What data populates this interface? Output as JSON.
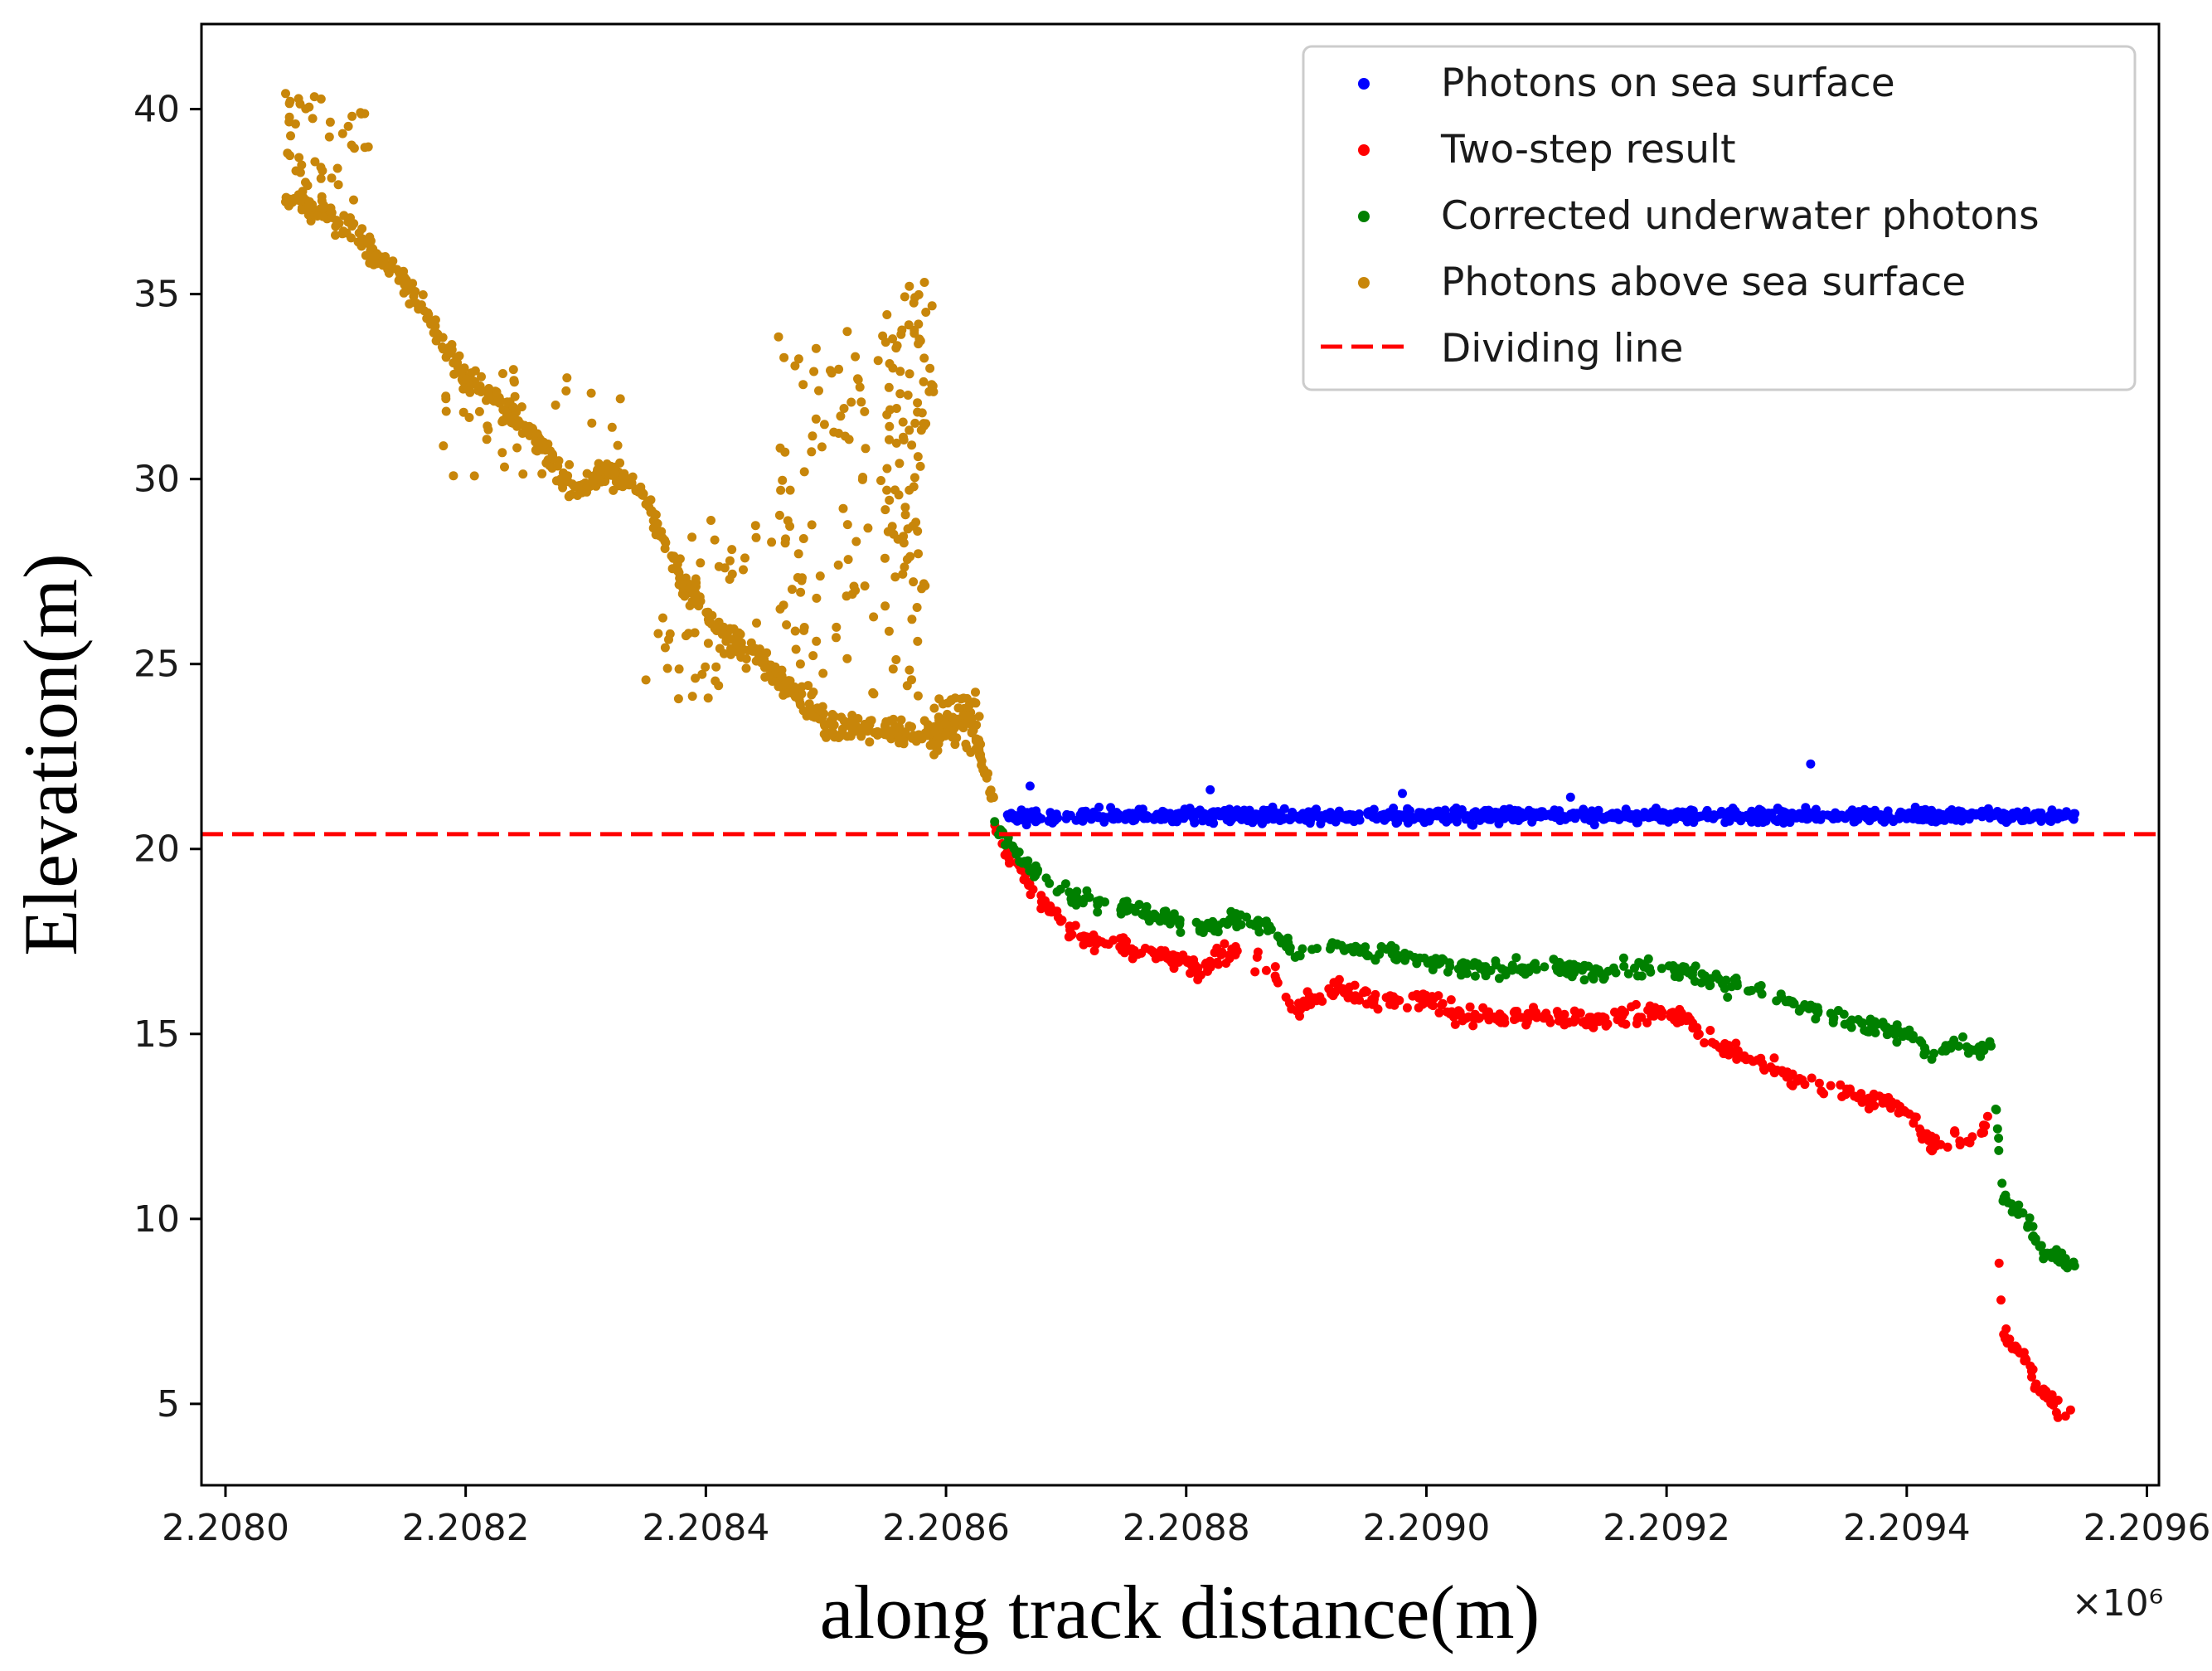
{
  "chart_data": {
    "type": "scatter",
    "title": "",
    "xlabel": "along track distance(m)",
    "ylabel": "Elevation(m)",
    "x_multiplier_label": "×10⁶",
    "xlim": [
      2.20798,
      2.20961
    ],
    "ylim": [
      2.8,
      42.3
    ],
    "grid": false,
    "legend_position": "top-right",
    "x_ticks": [
      2.208,
      2.2082,
      2.2084,
      2.2086,
      2.2088,
      2.209,
      2.2092,
      2.2094,
      2.2096
    ],
    "x_tick_labels": [
      "2.2080",
      "2.2082",
      "2.2084",
      "2.2086",
      "2.2088",
      "2.2090",
      "2.2092",
      "2.2094",
      "2.2096"
    ],
    "y_ticks": [
      5,
      10,
      15,
      20,
      25,
      30,
      35,
      40
    ],
    "y_tick_labels": [
      "5",
      "10",
      "15",
      "20",
      "25",
      "30",
      "35",
      "40"
    ],
    "dividing_line": {
      "label": "Dividing line",
      "y": 20.4,
      "color": "#ff0000",
      "style": "dashed"
    },
    "series": [
      {
        "name": "Photons on sea surface",
        "color": "#0000ff",
        "x_range": [
          2.20865,
          2.20954
        ],
        "y_center": 20.9,
        "y_spread": 0.35,
        "count": 900,
        "outliers": [
          [
            2.20932,
            22.3
          ],
          [
            2.20882,
            21.6
          ],
          [
            2.20898,
            21.5
          ],
          [
            2.20867,
            21.7
          ],
          [
            2.20912,
            21.4
          ]
        ]
      },
      {
        "name": "Two-step result",
        "color": "#ff0000",
        "profile": [
          [
            2.20864,
            20.6
          ],
          [
            2.20866,
            19.4
          ],
          [
            2.20868,
            18.5
          ],
          [
            2.20871,
            17.6
          ],
          [
            2.20875,
            17.3
          ],
          [
            2.20878,
            17.2
          ],
          [
            2.20881,
            16.7
          ],
          [
            2.20884,
            17.3
          ],
          [
            2.20887,
            16.8
          ],
          [
            2.20889,
            15.6
          ],
          [
            2.20892,
            16.2
          ],
          [
            2.20896,
            15.9
          ],
          [
            2.20899,
            16.0
          ],
          [
            2.20903,
            15.5
          ],
          [
            2.20907,
            15.5
          ],
          [
            2.20911,
            15.4
          ],
          [
            2.20915,
            15.3
          ],
          [
            2.20919,
            15.7
          ],
          [
            2.20922,
            15.3
          ],
          [
            2.20925,
            14.6
          ],
          [
            2.20928,
            14.2
          ],
          [
            2.20931,
            13.8
          ],
          [
            2.20934,
            13.5
          ],
          [
            2.20937,
            13.2
          ],
          [
            2.2094,
            13.0
          ],
          [
            2.20942,
            12.0
          ],
          [
            2.20944,
            12.3
          ],
          [
            2.20946,
            12.1
          ],
          [
            2.20947,
            12.8
          ],
          [
            2.20948,
            7.0
          ],
          [
            2.2095,
            6.2
          ],
          [
            2.20951,
            5.3
          ],
          [
            2.20953,
            4.8
          ],
          [
            2.20954,
            4.6
          ]
        ],
        "spread": 0.45,
        "count": 520
      },
      {
        "name": "Corrected underwater photons",
        "color": "#008000",
        "profile": [
          [
            2.20864,
            20.6
          ],
          [
            2.20866,
            19.8
          ],
          [
            2.20868,
            19.2
          ],
          [
            2.20871,
            18.6
          ],
          [
            2.20875,
            18.4
          ],
          [
            2.20878,
            18.2
          ],
          [
            2.20881,
            17.8
          ],
          [
            2.20884,
            18.1
          ],
          [
            2.20887,
            17.9
          ],
          [
            2.20889,
            17.2
          ],
          [
            2.20892,
            17.4
          ],
          [
            2.20896,
            17.2
          ],
          [
            2.20899,
            17.1
          ],
          [
            2.20903,
            16.8
          ],
          [
            2.20907,
            16.8
          ],
          [
            2.20911,
            16.8
          ],
          [
            2.20915,
            16.7
          ],
          [
            2.20919,
            16.9
          ],
          [
            2.20922,
            16.7
          ],
          [
            2.20925,
            16.3
          ],
          [
            2.20928,
            16.2
          ],
          [
            2.20931,
            15.8
          ],
          [
            2.20934,
            15.5
          ],
          [
            2.20937,
            15.2
          ],
          [
            2.2094,
            15.0
          ],
          [
            2.20942,
            14.4
          ],
          [
            2.20944,
            14.8
          ],
          [
            2.20946,
            14.5
          ],
          [
            2.20947,
            14.8
          ],
          [
            2.20948,
            10.6
          ],
          [
            2.2095,
            10.0
          ],
          [
            2.20951,
            9.2
          ],
          [
            2.20953,
            8.9
          ],
          [
            2.20954,
            8.7
          ]
        ],
        "spread": 0.4,
        "count": 520
      },
      {
        "name": "Photons above sea surface",
        "color": "#c8860a",
        "profile": [
          [
            2.20805,
            37.5
          ],
          [
            2.20808,
            37.3
          ],
          [
            2.20811,
            36.6
          ],
          [
            2.20814,
            35.7
          ],
          [
            2.20817,
            34.3
          ],
          [
            2.2082,
            32.8
          ],
          [
            2.20823,
            32.0
          ],
          [
            2.20826,
            31.0
          ],
          [
            2.20829,
            29.7
          ],
          [
            2.20832,
            30.2
          ],
          [
            2.20835,
            29.5
          ],
          [
            2.20838,
            27.2
          ],
          [
            2.20841,
            26.0
          ],
          [
            2.20844,
            25.3
          ],
          [
            2.20847,
            24.3
          ],
          [
            2.2085,
            23.4
          ],
          [
            2.20853,
            23.3
          ],
          [
            2.20856,
            23.2
          ],
          [
            2.20859,
            23.1
          ],
          [
            2.20862,
            23.6
          ],
          [
            2.20864,
            21.2
          ]
        ],
        "spread": 0.6,
        "count": 700,
        "scatter_above": [
          {
            "x_range": [
              2.20805,
              2.20812
            ],
            "y_range": [
              37.5,
              40.5
            ],
            "count": 45
          },
          {
            "x_range": [
              2.20818,
              2.20833
            ],
            "y_range": [
              30.0,
              33.0
            ],
            "count": 40
          },
          {
            "x_range": [
              2.20835,
              2.20848
            ],
            "y_range": [
              24.0,
              29.0
            ],
            "count": 60
          },
          {
            "x_range": [
              2.20846,
              2.20858
            ],
            "y_range": [
              24.0,
              34.0
            ],
            "count": 110
          },
          {
            "x_range": [
              2.20855,
              2.20859
            ],
            "y_range": [
              27.0,
              35.4
            ],
            "count": 70
          },
          {
            "x_range": [
              2.20859,
              2.20863
            ],
            "y_range": [
              22.5,
              24.3
            ],
            "count": 40
          }
        ]
      }
    ]
  },
  "legend": {
    "entries": [
      {
        "label": "Photons on sea surface",
        "color": "#0000ff",
        "kind": "dot"
      },
      {
        "label": "Two-step result",
        "color": "#ff0000",
        "kind": "dot"
      },
      {
        "label": "Corrected underwater photons",
        "color": "#008000",
        "kind": "dot"
      },
      {
        "label": "Photons above sea surface",
        "color": "#c8860a",
        "kind": "dot"
      },
      {
        "label": "Dividing line",
        "color": "#ff0000",
        "kind": "dash"
      }
    ]
  }
}
